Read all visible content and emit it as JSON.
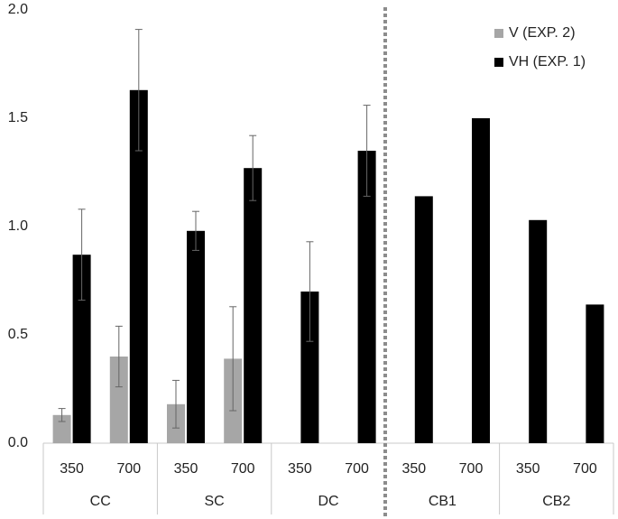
{
  "chart_data": {
    "type": "bar",
    "groups": [
      "CC",
      "SC",
      "DC",
      "CB1",
      "CB2"
    ],
    "categories": [
      "350",
      "700",
      "350",
      "700",
      "350",
      "700",
      "350",
      "700",
      "350",
      "700"
    ],
    "series": [
      {
        "name": "V (EXP. 2)",
        "color": "#a6a6a6",
        "values": [
          0.13,
          0.4,
          0.18,
          0.39,
          null,
          null,
          null,
          null,
          null,
          null
        ],
        "errors": [
          0.03,
          0.14,
          0.11,
          0.24,
          null,
          null,
          null,
          null,
          null,
          null
        ]
      },
      {
        "name": "VH (EXP. 1)",
        "color": "#000000",
        "values": [
          0.87,
          1.63,
          0.98,
          1.27,
          0.7,
          1.35,
          1.14,
          1.5,
          1.03,
          0.64
        ],
        "errors": [
          0.21,
          0.28,
          0.09,
          0.15,
          0.23,
          0.21,
          null,
          null,
          null,
          null
        ]
      }
    ],
    "ylim": [
      0,
      2
    ],
    "yticks": [
      {
        "value": 0,
        "label": "0.0"
      },
      {
        "value": 0.5,
        "label": "0.5"
      },
      {
        "value": 1,
        "label": "1.0"
      },
      {
        "value": 1.5,
        "label": "1.5"
      },
      {
        "value": 2,
        "label": "2.0"
      }
    ],
    "grid": false,
    "legend": "top-right"
  }
}
